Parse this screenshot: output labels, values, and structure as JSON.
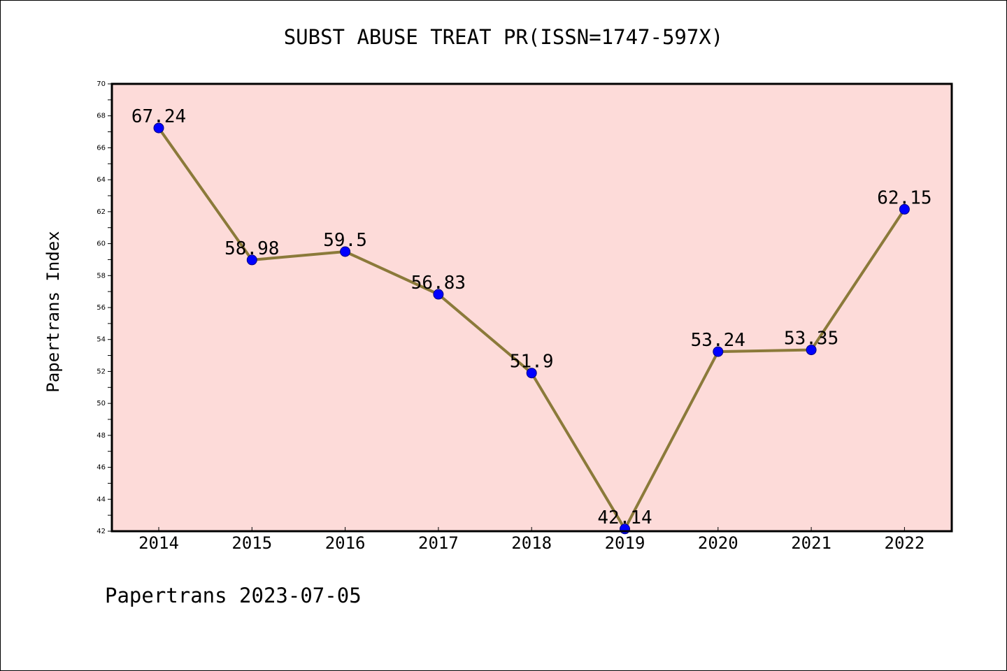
{
  "chart_data": {
    "type": "line",
    "title": "SUBST ABUSE TREAT PR(ISSN=1747-597X)",
    "ylabel": "Papertrans Index",
    "xlabel": "",
    "categories": [
      "2014",
      "2015",
      "2016",
      "2017",
      "2018",
      "2019",
      "2020",
      "2021",
      "2022"
    ],
    "series": [
      {
        "values": [
          67.24,
          58.98,
          59.5,
          56.83,
          51.9,
          42.14,
          53.24,
          53.35,
          62.15
        ],
        "data_labels": [
          "67.24",
          "58.98",
          "59.5",
          "56.83",
          "51.9",
          "42.14",
          "53.24",
          "53.35",
          "62.15"
        ]
      }
    ],
    "ylim": [
      42,
      70
    ],
    "yticks": [
      "42",
      "44",
      "46",
      "48",
      "50",
      "52",
      "54",
      "56",
      "58",
      "60",
      "62",
      "64",
      "66",
      "68",
      "70"
    ],
    "grid": false,
    "colors": {
      "plot_background": "#fddbd9",
      "line": "#8b7a3a",
      "marker": "#0000ff",
      "axis": "#000000"
    }
  },
  "footer": {
    "text": "Papertrans 2023-07-05"
  }
}
